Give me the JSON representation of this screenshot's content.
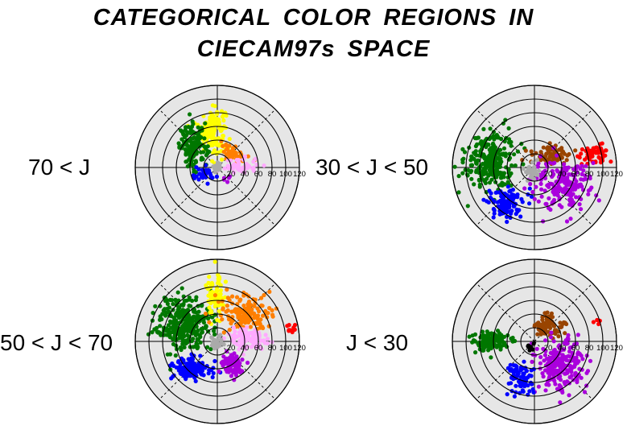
{
  "title_line1": "CATEGORICAL  COLOR  REGIONS  IN",
  "title_line2": "CIECAM97s  SPACE",
  "chart_data": [
    {
      "type": "scatter",
      "panel_label": "70 < J",
      "radial_ticks": [
        "20",
        "40",
        "60",
        "80",
        "100",
        "120"
      ],
      "rmax": 120,
      "clusters": [
        {
          "color": "#ffff00",
          "center": [
            -8,
            55
          ],
          "spread": [
            10,
            16
          ],
          "n": 150
        },
        {
          "color": "#007700",
          "center": [
            -35,
            30
          ],
          "spread": [
            10,
            16
          ],
          "n": 140
        },
        {
          "color": "#ff7f00",
          "center": [
            25,
            22
          ],
          "spread": [
            10,
            6
          ],
          "n": 45
        },
        {
          "color": "#ffaaff",
          "center": [
            35,
            3
          ],
          "spread": [
            12,
            6
          ],
          "n": 45
        },
        {
          "color": "#0000ff",
          "center": [
            -20,
            -12
          ],
          "spread": [
            9,
            6
          ],
          "n": 35
        },
        {
          "color": "#aaaaaa",
          "center": [
            0,
            0
          ],
          "spread": [
            3,
            3
          ],
          "n": 20
        },
        {
          "color": "#aa00dd",
          "center": [
            15,
            -15
          ],
          "spread": [
            3,
            3
          ],
          "n": 5
        }
      ]
    },
    {
      "type": "scatter",
      "panel_label": "30 < J < 50",
      "radial_ticks": [
        "20",
        "40",
        "60",
        "80",
        "100",
        "120"
      ],
      "rmax": 120,
      "clusters": [
        {
          "color": "#007700",
          "center": [
            -65,
            10
          ],
          "spread": [
            18,
            22
          ],
          "n": 260
        },
        {
          "color": "#994400",
          "center": [
            25,
            18
          ],
          "spread": [
            14,
            7
          ],
          "n": 80
        },
        {
          "color": "#ff0000",
          "center": [
            88,
            20
          ],
          "spread": [
            12,
            6
          ],
          "n": 60
        },
        {
          "color": "#aa00dd",
          "center": [
            38,
            -25
          ],
          "spread": [
            22,
            17
          ],
          "n": 200
        },
        {
          "color": "#0000ff",
          "center": [
            -42,
            -52
          ],
          "spread": [
            13,
            10
          ],
          "n": 120
        },
        {
          "color": "#aaaaaa",
          "center": [
            -5,
            -5
          ],
          "spread": [
            5,
            7
          ],
          "n": 30
        }
      ]
    },
    {
      "type": "scatter",
      "panel_label": "50 < J < 70",
      "radial_ticks": [
        "20",
        "40",
        "60",
        "80",
        "100",
        "120"
      ],
      "rmax": 120,
      "clusters": [
        {
          "color": "#007700",
          "center": [
            -48,
            25
          ],
          "spread": [
            20,
            20
          ],
          "n": 320
        },
        {
          "color": "#ffff00",
          "center": [
            -3,
            65
          ],
          "spread": [
            7,
            16
          ],
          "n": 80
        },
        {
          "color": "#ff7f00",
          "center": [
            40,
            40
          ],
          "spread": [
            20,
            14
          ],
          "n": 150
        },
        {
          "color": "#ffaaff",
          "center": [
            40,
            5
          ],
          "spread": [
            16,
            7
          ],
          "n": 100
        },
        {
          "color": "#ff0000",
          "center": [
            105,
            18
          ],
          "spread": [
            5,
            3
          ],
          "n": 12
        },
        {
          "color": "#0000ff",
          "center": [
            -35,
            -40
          ],
          "spread": [
            14,
            8
          ],
          "n": 120
        },
        {
          "color": "#aa00dd",
          "center": [
            22,
            -35
          ],
          "spread": [
            10,
            10
          ],
          "n": 80
        },
        {
          "color": "#aaaaaa",
          "center": [
            0,
            0
          ],
          "spread": [
            4,
            5
          ],
          "n": 25
        }
      ]
    },
    {
      "type": "scatter",
      "panel_label": "J < 30",
      "radial_ticks": [
        "20",
        "40",
        "60",
        "80",
        "100",
        "120"
      ],
      "rmax": 120,
      "clusters": [
        {
          "color": "#007700",
          "center": [
            -65,
            0
          ],
          "spread": [
            13,
            7
          ],
          "n": 140
        },
        {
          "color": "#994400",
          "center": [
            20,
            22
          ],
          "spread": [
            10,
            8
          ],
          "n": 80
        },
        {
          "color": "#ff0000",
          "center": [
            92,
            30
          ],
          "spread": [
            3,
            2
          ],
          "n": 4
        },
        {
          "color": "#aa00dd",
          "center": [
            40,
            -35
          ],
          "spread": [
            18,
            20
          ],
          "n": 200
        },
        {
          "color": "#0000ff",
          "center": [
            -22,
            -55
          ],
          "spread": [
            9,
            12
          ],
          "n": 80
        },
        {
          "color": "#000000",
          "center": [
            -5,
            -8
          ],
          "spread": [
            2,
            3
          ],
          "n": 10
        }
      ]
    }
  ]
}
